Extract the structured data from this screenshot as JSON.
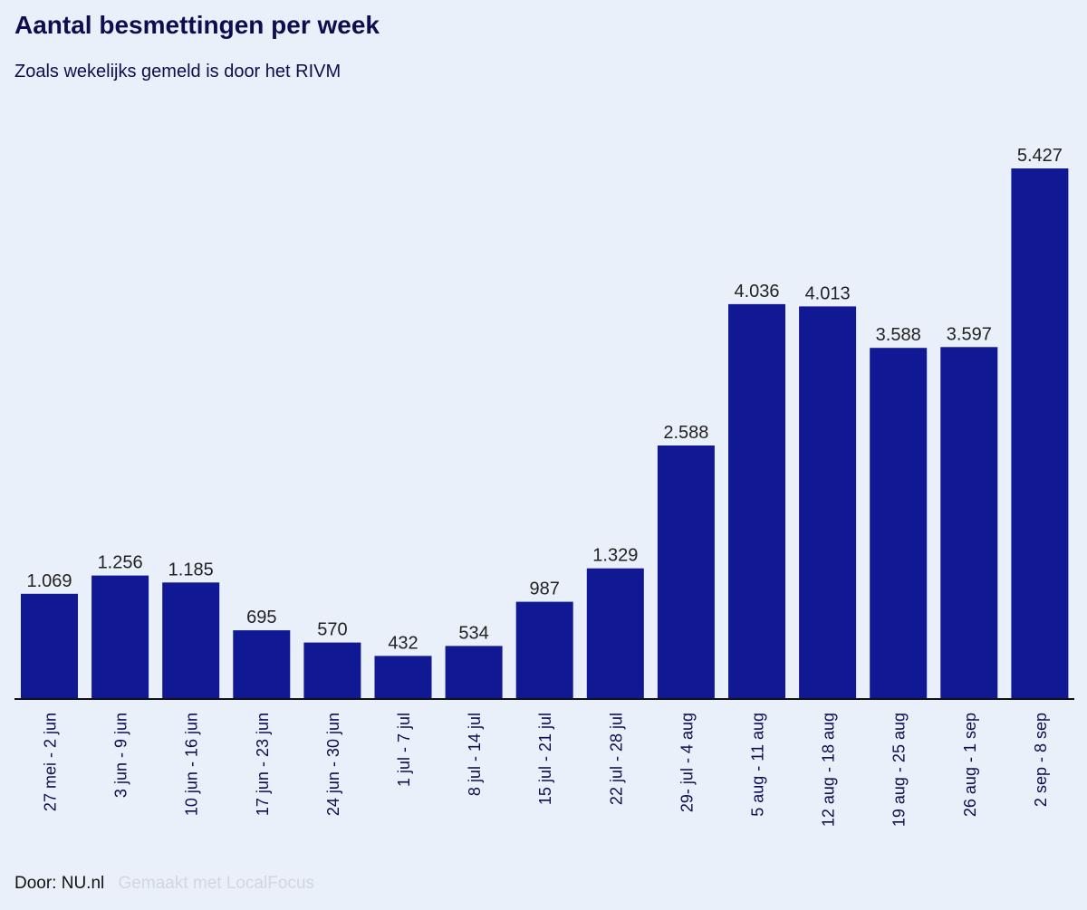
{
  "header": {
    "title": "Aantal besmettingen per week",
    "subtitle": "Zoals wekelijks gemeld is door het RIVM"
  },
  "footer": {
    "author": "Door: NU.nl",
    "credit": "Gemaakt met LocalFocus"
  },
  "colors": {
    "bar": "#101893",
    "text": "#0d0d4f",
    "label": "#222222",
    "background": "#e9f0fa"
  },
  "chart_data": {
    "type": "bar",
    "title": "Aantal besmettingen per week",
    "subtitle": "Zoals wekelijks gemeld is door het RIVM",
    "xlabel": "",
    "ylabel": "",
    "ylim": [
      0,
      5427
    ],
    "grid": false,
    "legend": "none",
    "categories": [
      "27 mei - 2 jun",
      "3 jun - 9 jun",
      "10 jun - 16 jun",
      "17 jun - 23 jun",
      "24 jun - 30 jun",
      "1 jul - 7 jul",
      "8 jul - 14 jul",
      "15 jul - 21 jul",
      "22 jul - 28 jul",
      "29- jul - 4 aug",
      "5 aug - 11 aug",
      "12 aug - 18 aug",
      "19 aug - 25 aug",
      "26 aug - 1 sep",
      "2 sep - 8 sep"
    ],
    "values": [
      1069,
      1256,
      1185,
      695,
      570,
      432,
      534,
      987,
      1329,
      2588,
      4036,
      4013,
      3588,
      3597,
      5427
    ],
    "value_labels": [
      "1.069",
      "1.256",
      "1.185",
      "695",
      "570",
      "432",
      "534",
      "987",
      "1.329",
      "2.588",
      "4.036",
      "4.013",
      "3.588",
      "3.597",
      "5.427"
    ]
  }
}
